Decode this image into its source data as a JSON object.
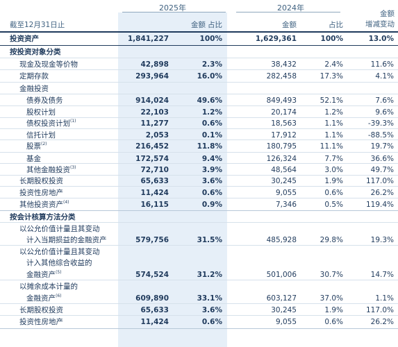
{
  "header": {
    "year_2025": "2025年",
    "year_2024": "2024年",
    "date_label": "截至12月31日止",
    "amount": "金额",
    "ratio": "占比",
    "change_line1": "金额",
    "change_line2": "增减变动"
  },
  "rows": [
    {
      "label": "投资资产",
      "v25": "1,841,227",
      "p25": "100%",
      "v24": "1,629,361",
      "p24": "100%",
      "chg": "13.0%"
    },
    {
      "label": "按投资对象分类"
    },
    {
      "label": "现金及现金等价物",
      "v25": "42,898",
      "p25": "2.3%",
      "v24": "38,432",
      "p24": "2.4%",
      "chg": "11.6%"
    },
    {
      "label": "定期存款",
      "v25": "293,964",
      "p25": "16.0%",
      "v24": "282,458",
      "p24": "17.3%",
      "chg": "4.1%"
    },
    {
      "label": "金融投资"
    },
    {
      "label": "债券及债务",
      "v25": "914,024",
      "p25": "49.6%",
      "v24": "849,493",
      "p24": "52.1%",
      "chg": "7.6%"
    },
    {
      "label": "股权计划",
      "v25": "22,103",
      "p25": "1.2%",
      "v24": "20,174",
      "p24": "1.2%",
      "chg": "9.6%"
    },
    {
      "label": "债权投资计划",
      "sup": "(1)",
      "v25": "11,277",
      "p25": "0.6%",
      "v24": "18,563",
      "p24": "1.1%",
      "chg": "-39.3%"
    },
    {
      "label": "信托计划",
      "v25": "2,053",
      "p25": "0.1%",
      "v24": "17,912",
      "p24": "1.1%",
      "chg": "-88.5%"
    },
    {
      "label": "股票",
      "sup": "(2)",
      "v25": "216,452",
      "p25": "11.8%",
      "v24": "180,795",
      "p24": "11.1%",
      "chg": "19.7%"
    },
    {
      "label": "基金",
      "v25": "172,574",
      "p25": "9.4%",
      "v24": "126,324",
      "p24": "7.7%",
      "chg": "36.6%"
    },
    {
      "label": "其他金融投资",
      "sup": "(3)",
      "v25": "72,710",
      "p25": "3.9%",
      "v24": "48,564",
      "p24": "3.0%",
      "chg": "49.7%"
    },
    {
      "label": "长期股权投资",
      "v25": "65,633",
      "p25": "3.6%",
      "v24": "30,245",
      "p24": "1.9%",
      "chg": "117.0%"
    },
    {
      "label": "投资性房地产",
      "v25": "11,424",
      "p25": "0.6%",
      "v24": "9,055",
      "p24": "0.6%",
      "chg": "26.2%"
    },
    {
      "label": "其他投资资产",
      "sup": "(4)",
      "v25": "16,115",
      "p25": "0.9%",
      "v24": "7,346",
      "p24": "0.5%",
      "chg": "119.4%"
    },
    {
      "label": "按会计核算方法分类"
    },
    {
      "label": "以公允价值计量且其变动"
    },
    {
      "label": "计入当期损益的金融资产",
      "v25": "579,756",
      "p25": "31.5%",
      "v24": "485,928",
      "p24": "29.8%",
      "chg": "19.3%"
    },
    {
      "label": "以公允价值计量且其变动"
    },
    {
      "label": "计入其他综合收益的"
    },
    {
      "label": "金融资产",
      "sup": "(5)",
      "v25": "574,524",
      "p25": "31.2%",
      "v24": "501,006",
      "p24": "30.7%",
      "chg": "14.7%"
    },
    {
      "label": "以摊余成本计量的"
    },
    {
      "label": "金融资产",
      "sup": "(6)",
      "v25": "609,890",
      "p25": "33.1%",
      "v24": "603,127",
      "p24": "37.0%",
      "chg": "1.1%"
    },
    {
      "label": "长期股权投资",
      "v25": "65,633",
      "p25": "3.6%",
      "v24": "30,245",
      "p24": "1.9%",
      "chg": "117.0%"
    },
    {
      "label": "投资性房地产",
      "v25": "11,424",
      "p25": "0.6%",
      "v24": "9,055",
      "p24": "0.6%",
      "chg": "26.2%"
    }
  ]
}
